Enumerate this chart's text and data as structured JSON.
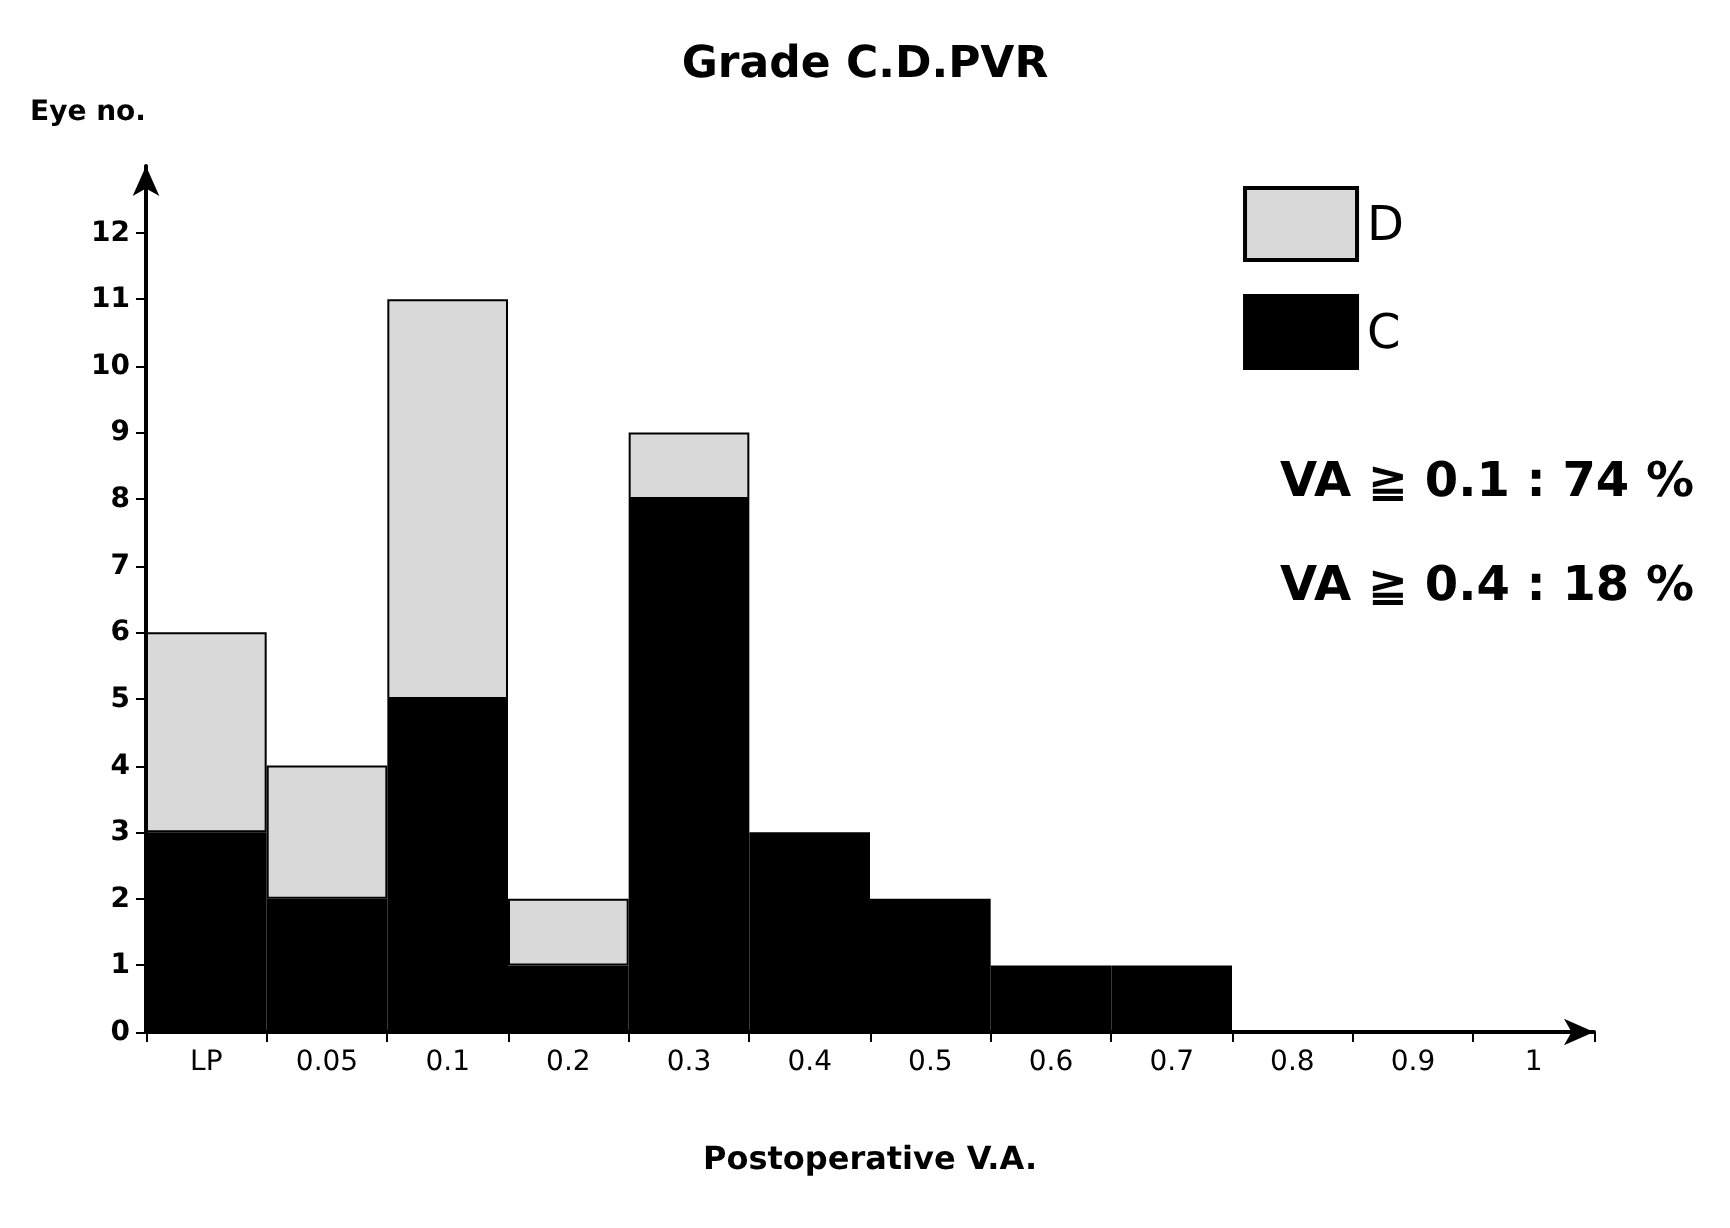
{
  "chart_data": {
    "type": "bar",
    "title": "Grade C.D.PVR",
    "xlabel": "Postoperative V.A.",
    "ylabel": "Eye no.",
    "categories": [
      "LP",
      "0.05",
      "0.1",
      "0.2",
      "0.3",
      "0.4",
      "0.5",
      "0.6",
      "0.7",
      "0.8",
      "0.9",
      "1"
    ],
    "stacked": true,
    "series": [
      {
        "name": "C",
        "color": "#000000",
        "values": [
          3,
          2,
          5,
          1,
          8,
          3,
          2,
          1,
          1,
          0,
          0,
          0
        ]
      },
      {
        "name": "D",
        "color": "#d9d9d9",
        "values": [
          3,
          2,
          6,
          1,
          1,
          0,
          0,
          0,
          0,
          0,
          0,
          0
        ]
      }
    ],
    "ylim": [
      0,
      13
    ],
    "yticks": [
      0,
      1,
      2,
      3,
      4,
      5,
      6,
      7,
      8,
      9,
      10,
      11,
      12
    ],
    "grid": false,
    "legend": "top right",
    "annotations": [
      "VA ≧ 0.1 : 74 %",
      "VA ≧ 0.4 : 18 %"
    ]
  }
}
